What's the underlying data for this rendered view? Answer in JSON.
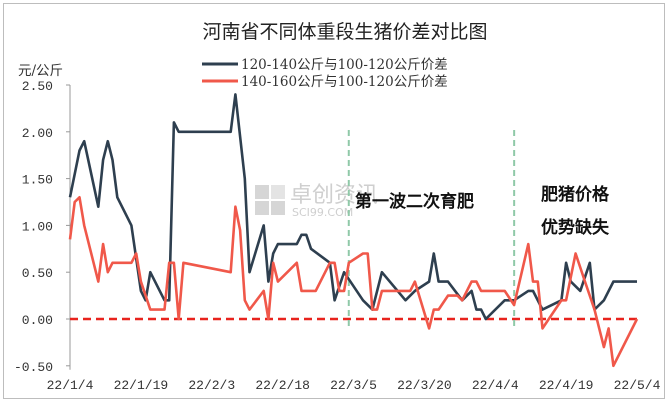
{
  "chart_data": {
    "type": "line",
    "title": "河南省不同体重段生猪价差对比图",
    "ylabel": "元/公斤",
    "xlabel": "",
    "ylim": [
      -0.5,
      2.5
    ],
    "yticks": [
      "2.50",
      "2.00",
      "1.50",
      "1.00",
      "0.50",
      "0.00",
      "-0.50"
    ],
    "ytick_values": [
      2.5,
      2.0,
      1.5,
      1.0,
      0.5,
      0.0,
      -0.5
    ],
    "xlim": [
      "2022-01-04",
      "2022-05-04"
    ],
    "xticks": [
      "22/1/4",
      "22/1/19",
      "22/2/3",
      "22/2/18",
      "22/3/5",
      "22/3/20",
      "22/4/4",
      "22/4/19",
      "22/5/4"
    ],
    "xtick_dates": [
      "2022-01-04",
      "2022-01-19",
      "2022-02-03",
      "2022-02-18",
      "2022-03-05",
      "2022-03-20",
      "2022-04-04",
      "2022-04-19",
      "2022-05-04"
    ],
    "grid": false,
    "legend_position": "top-center",
    "reference_line": {
      "y": 0,
      "color": "#e8231d",
      "style": "dashed"
    },
    "vertical_markers": [
      {
        "x": "2022-03-04",
        "color": "#8fc9a8",
        "style": "dashed"
      },
      {
        "x": "2022-04-08",
        "color": "#8fc9a8",
        "style": "dashed"
      }
    ],
    "annotations": [
      "第一波二次育肥",
      "肥猪价格",
      "优势缺失"
    ],
    "watermark": {
      "text": "卓创资讯",
      "subtext": "SCI99.COM"
    },
    "series": [
      {
        "name": "120-140公斤与100-120公斤价差",
        "color": "#2e3f4f",
        "x": [
          "2022-01-04",
          "2022-01-06",
          "2022-01-07",
          "2022-01-10",
          "2022-01-11",
          "2022-01-12",
          "2022-01-13",
          "2022-01-14",
          "2022-01-17",
          "2022-01-19",
          "2022-01-20",
          "2022-01-21",
          "2022-01-24",
          "2022-01-25",
          "2022-01-26",
          "2022-01-27",
          "2022-02-07",
          "2022-02-08",
          "2022-02-10",
          "2022-02-11",
          "2022-02-14",
          "2022-02-15",
          "2022-02-16",
          "2022-02-17",
          "2022-02-21",
          "2022-02-22",
          "2022-02-23",
          "2022-02-24",
          "2022-02-28",
          "2022-03-01",
          "2022-03-03",
          "2022-03-07",
          "2022-03-09",
          "2022-03-11",
          "2022-03-16",
          "2022-03-18",
          "2022-03-21",
          "2022-03-22",
          "2022-03-23",
          "2022-03-25",
          "2022-03-28",
          "2022-03-30",
          "2022-03-31",
          "2022-04-01",
          "2022-04-02",
          "2022-04-06",
          "2022-04-08",
          "2022-04-11",
          "2022-04-12",
          "2022-04-14",
          "2022-04-18",
          "2022-04-19",
          "2022-04-20",
          "2022-04-22",
          "2022-04-24",
          "2022-04-25",
          "2022-04-27",
          "2022-04-29",
          "2022-05-04"
        ],
        "values": [
          1.3,
          1.8,
          1.9,
          1.2,
          1.7,
          1.9,
          1.7,
          1.3,
          1.0,
          0.3,
          0.2,
          0.5,
          0.2,
          0.2,
          2.1,
          2.0,
          2.0,
          2.4,
          1.5,
          0.5,
          1.0,
          0.4,
          0.7,
          0.8,
          0.8,
          0.9,
          0.9,
          0.75,
          0.6,
          0.2,
          0.5,
          0.2,
          0.1,
          0.5,
          0.2,
          0.3,
          0.4,
          0.7,
          0.4,
          0.4,
          0.2,
          0.3,
          0.1,
          0.1,
          0.0,
          0.2,
          0.2,
          0.3,
          0.3,
          0.1,
          0.2,
          0.6,
          0.4,
          0.3,
          0.6,
          0.1,
          0.2,
          0.4,
          0.4
        ]
      },
      {
        "name": "140-160公斤与100-120公斤价差",
        "color": "#f0584a",
        "x": [
          "2022-01-04",
          "2022-01-05",
          "2022-01-06",
          "2022-01-07",
          "2022-01-10",
          "2022-01-11",
          "2022-01-12",
          "2022-01-13",
          "2022-01-17",
          "2022-01-18",
          "2022-01-19",
          "2022-01-21",
          "2022-01-24",
          "2022-01-25",
          "2022-01-26",
          "2022-01-27",
          "2022-01-28",
          "2022-02-07",
          "2022-02-08",
          "2022-02-09",
          "2022-02-10",
          "2022-02-11",
          "2022-02-14",
          "2022-02-15",
          "2022-02-16",
          "2022-02-17",
          "2022-02-21",
          "2022-02-22",
          "2022-02-25",
          "2022-02-28",
          "2022-03-01",
          "2022-03-02",
          "2022-03-03",
          "2022-03-04",
          "2022-03-07",
          "2022-03-08",
          "2022-03-09",
          "2022-03-10",
          "2022-03-11",
          "2022-03-17",
          "2022-03-18",
          "2022-03-21",
          "2022-03-22",
          "2022-03-23",
          "2022-03-25",
          "2022-03-27",
          "2022-03-28",
          "2022-03-30",
          "2022-03-31",
          "2022-04-01",
          "2022-04-06",
          "2022-04-08",
          "2022-04-11",
          "2022-04-12",
          "2022-04-13",
          "2022-04-14",
          "2022-04-18",
          "2022-04-19",
          "2022-04-21",
          "2022-04-23",
          "2022-04-25",
          "2022-04-26",
          "2022-04-27",
          "2022-04-28",
          "2022-04-29",
          "2022-05-04"
        ],
        "values": [
          0.85,
          1.25,
          1.3,
          1.0,
          0.4,
          0.8,
          0.5,
          0.6,
          0.6,
          0.7,
          0.4,
          0.1,
          0.1,
          0.6,
          0.6,
          0.0,
          0.6,
          0.5,
          1.2,
          0.95,
          0.2,
          0.1,
          0.3,
          0.0,
          0.6,
          0.4,
          0.6,
          0.3,
          0.3,
          0.6,
          0.6,
          0.3,
          0.3,
          0.6,
          0.7,
          0.7,
          0.1,
          0.1,
          0.3,
          0.3,
          0.4,
          -0.1,
          0.1,
          0.1,
          0.25,
          0.25,
          0.2,
          0.4,
          0.4,
          0.3,
          0.3,
          0.15,
          0.8,
          0.4,
          0.4,
          -0.1,
          0.2,
          0.2,
          0.7,
          0.4,
          0.1,
          -0.1,
          -0.3,
          -0.1,
          -0.5,
          0.0
        ]
      }
    ]
  }
}
